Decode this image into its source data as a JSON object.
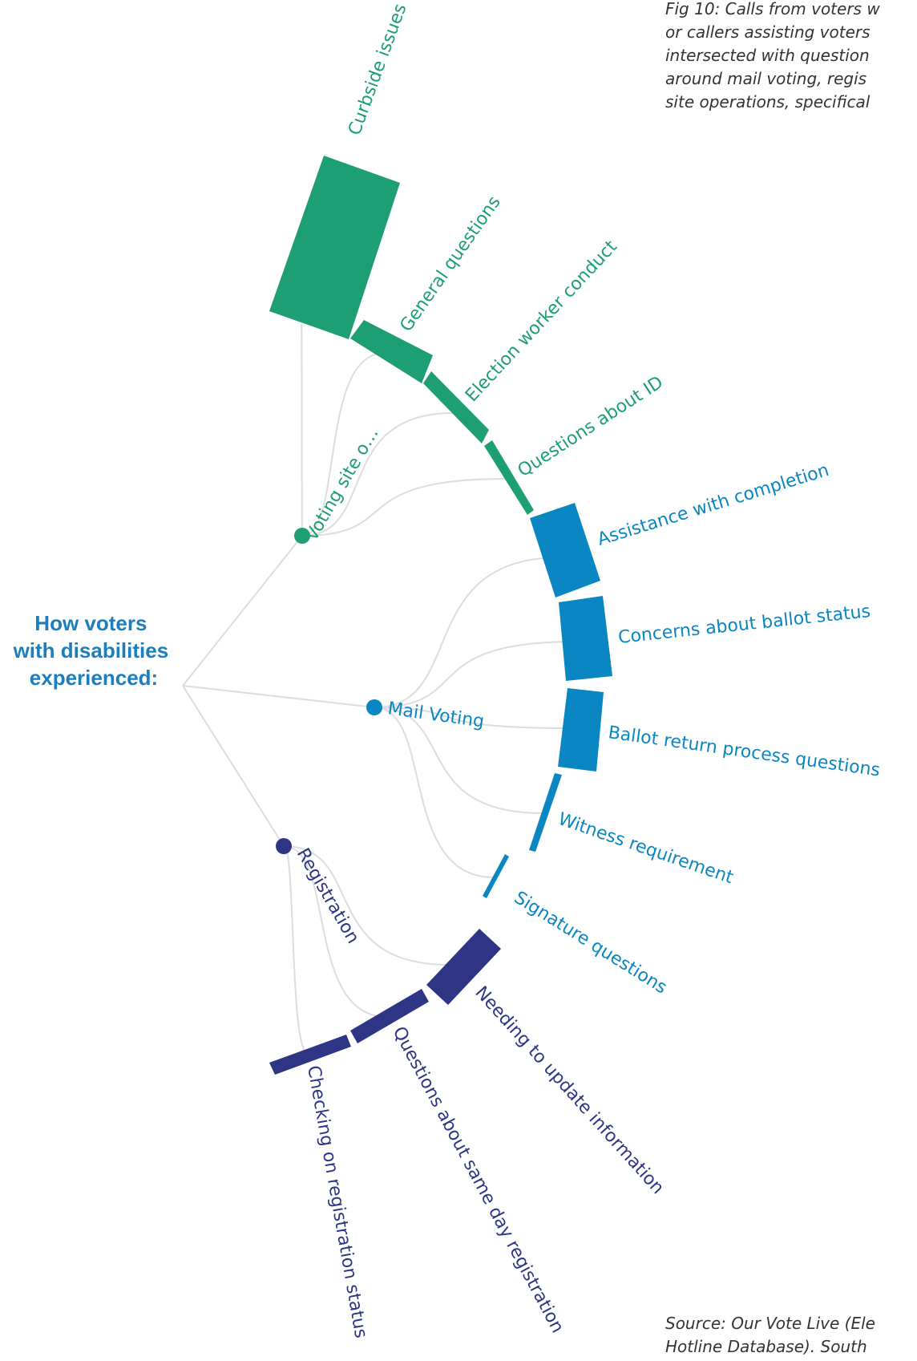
{
  "root": {
    "title_lines": [
      "How voters",
      "with disabilities",
      "experienced:"
    ],
    "color": "#1a7fbf"
  },
  "caption_lines": [
    "Fig 10: Calls from voters w",
    "or callers assisting voters",
    "intersected with question",
    "around mail voting, regis",
    "site operations, specifical"
  ],
  "source_lines": [
    "Source: Our Vote Live (Ele",
    "Hotline Database). South"
  ],
  "link_color": "#dddddd",
  "groups": [
    {
      "id": "voting-site",
      "label": "Voting site o…",
      "color": "#1d9e74",
      "leaves": [
        {
          "id": "curbside",
          "label": "Curbside issues"
        },
        {
          "id": "general",
          "label": "General questions"
        },
        {
          "id": "worker-conduct",
          "label": "Election worker conduct"
        },
        {
          "id": "id-questions",
          "label": "Questions about ID"
        }
      ]
    },
    {
      "id": "mail-voting",
      "label": "Mail Voting",
      "color": "#0a87c2",
      "leaves": [
        {
          "id": "assistance",
          "label": "Assistance with completion"
        },
        {
          "id": "ballot-status",
          "label": "Concerns about ballot status"
        },
        {
          "id": "ballot-return",
          "label": "Ballot return process questions"
        },
        {
          "id": "witness",
          "label": "Witness requirement"
        },
        {
          "id": "signature",
          "label": "Signature questions"
        }
      ]
    },
    {
      "id": "registration",
      "label": "Registration",
      "color": "#2e3584",
      "leaves": [
        {
          "id": "update-info",
          "label": "Needing to update information"
        },
        {
          "id": "same-day",
          "label": "Questions about same day registration"
        },
        {
          "id": "checking-status",
          "label": "Checking on registration status"
        }
      ]
    }
  ]
}
